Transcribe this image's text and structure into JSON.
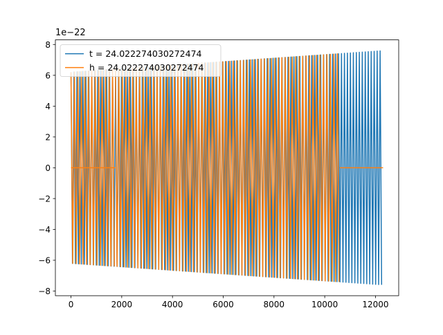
{
  "chart_data": {
    "type": "line",
    "title": "",
    "xlabel": "",
    "ylabel": "",
    "xlim": [
      -615,
      12915
    ],
    "ylim": [
      -8.3,
      8.3
    ],
    "y_offset_label": "1e−22",
    "x_ticks": [
      0,
      2000,
      4000,
      6000,
      8000,
      10000,
      12000
    ],
    "x_tick_labels": [
      "0",
      "2000",
      "4000",
      "6000",
      "8000",
      "10000",
      "12000"
    ],
    "y_ticks": [
      -8,
      -6,
      -4,
      -2,
      0,
      2,
      4,
      6,
      8
    ],
    "y_tick_labels": [
      "−8",
      "−6",
      "−4",
      "−2",
      "0",
      "2",
      "4",
      "6",
      "8"
    ],
    "grid": false,
    "legend_position": "top-left",
    "series": [
      {
        "name": "t = 24.022274030272474",
        "color": "#1f77b4",
        "x_start": 0,
        "x_end": 12300,
        "envelope_start": 6.2,
        "envelope_end": 7.6,
        "cycles": 105,
        "segments": [
          {
            "x_start": 0,
            "x_end": 12300,
            "kind": "oscillation"
          }
        ]
      },
      {
        "name": "h = 24.022274030272474",
        "color": "#ff7f0e",
        "x_start": 0,
        "x_end": 12300,
        "envelope_start": 6.2,
        "envelope_end": 7.6,
        "cycles": 90,
        "segments": [
          {
            "x_start": 0,
            "x_end": 1750,
            "kind": "oscillation",
            "baseline": 0
          },
          {
            "x_start": 1750,
            "x_end": 10600,
            "kind": "oscillation"
          },
          {
            "x_start": 10600,
            "x_end": 12300,
            "kind": "flat",
            "baseline": 0
          }
        ]
      }
    ]
  }
}
